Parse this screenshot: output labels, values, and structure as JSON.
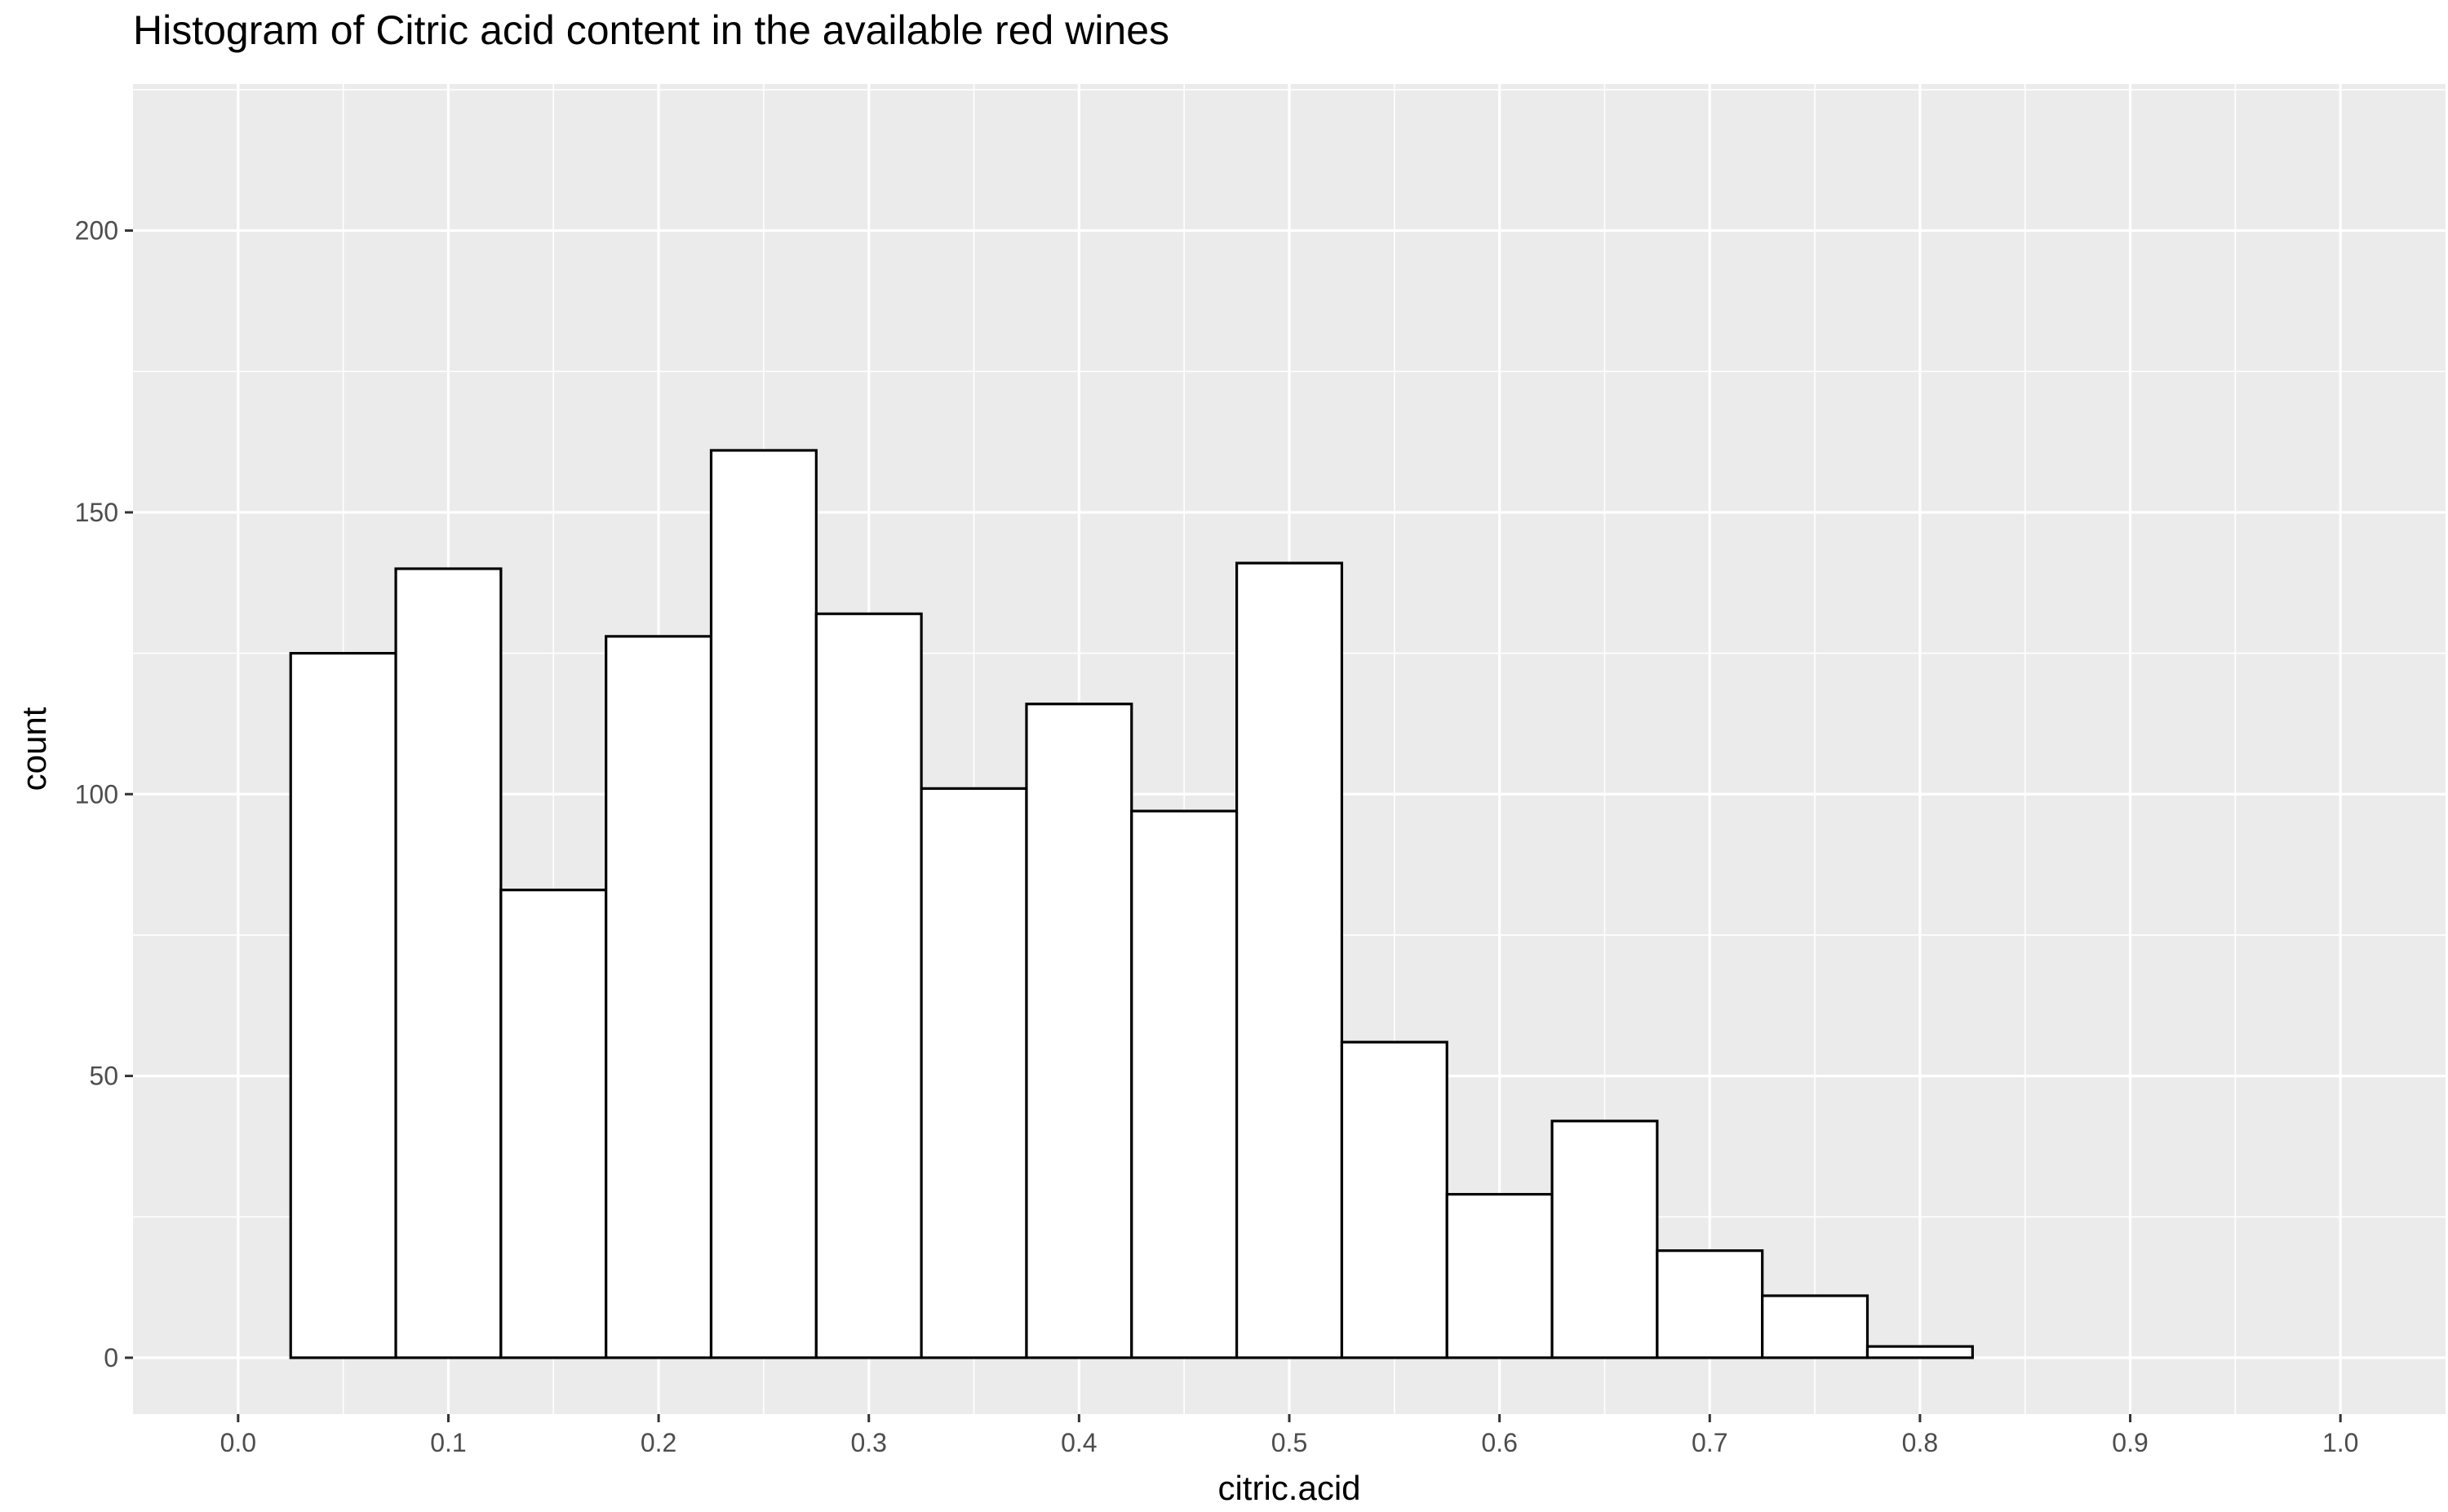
{
  "chart_data": {
    "type": "bar",
    "title": "Histogram of Citric acid content in the available red wines",
    "xlabel": "citric.acid",
    "ylabel": "count",
    "xlim": [
      -0.05,
      1.05
    ],
    "ylim": [
      -10,
      226
    ],
    "binwidth": 0.05,
    "x_ticks": [
      "0.0",
      "0.1",
      "0.2",
      "0.3",
      "0.4",
      "0.5",
      "0.6",
      "0.7",
      "0.8",
      "0.9",
      "1.0"
    ],
    "x_tick_values": [
      0.0,
      0.1,
      0.2,
      0.3,
      0.4,
      0.5,
      0.6,
      0.7,
      0.8,
      0.9,
      1.0
    ],
    "y_ticks": [
      "0",
      "50",
      "100",
      "150",
      "200"
    ],
    "y_tick_values": [
      0,
      50,
      100,
      150,
      200
    ],
    "bin_centers": [
      0.05,
      0.1,
      0.15,
      0.2,
      0.25,
      0.3,
      0.35,
      0.4,
      0.45,
      0.5,
      0.55,
      0.6,
      0.65,
      0.7,
      0.75,
      0.8,
      0.85,
      0.9,
      0.95
    ],
    "values": [
      125,
      140,
      83,
      128,
      161,
      132,
      101,
      116,
      97,
      141,
      56,
      29,
      42,
      19,
      11,
      2,
      0,
      0,
      0
    ],
    "grid": true,
    "colors": {
      "panel_background": "#ebebeb",
      "grid_major": "#ffffff",
      "bar_fill": "#ffffff",
      "bar_outline": "#000000"
    }
  }
}
